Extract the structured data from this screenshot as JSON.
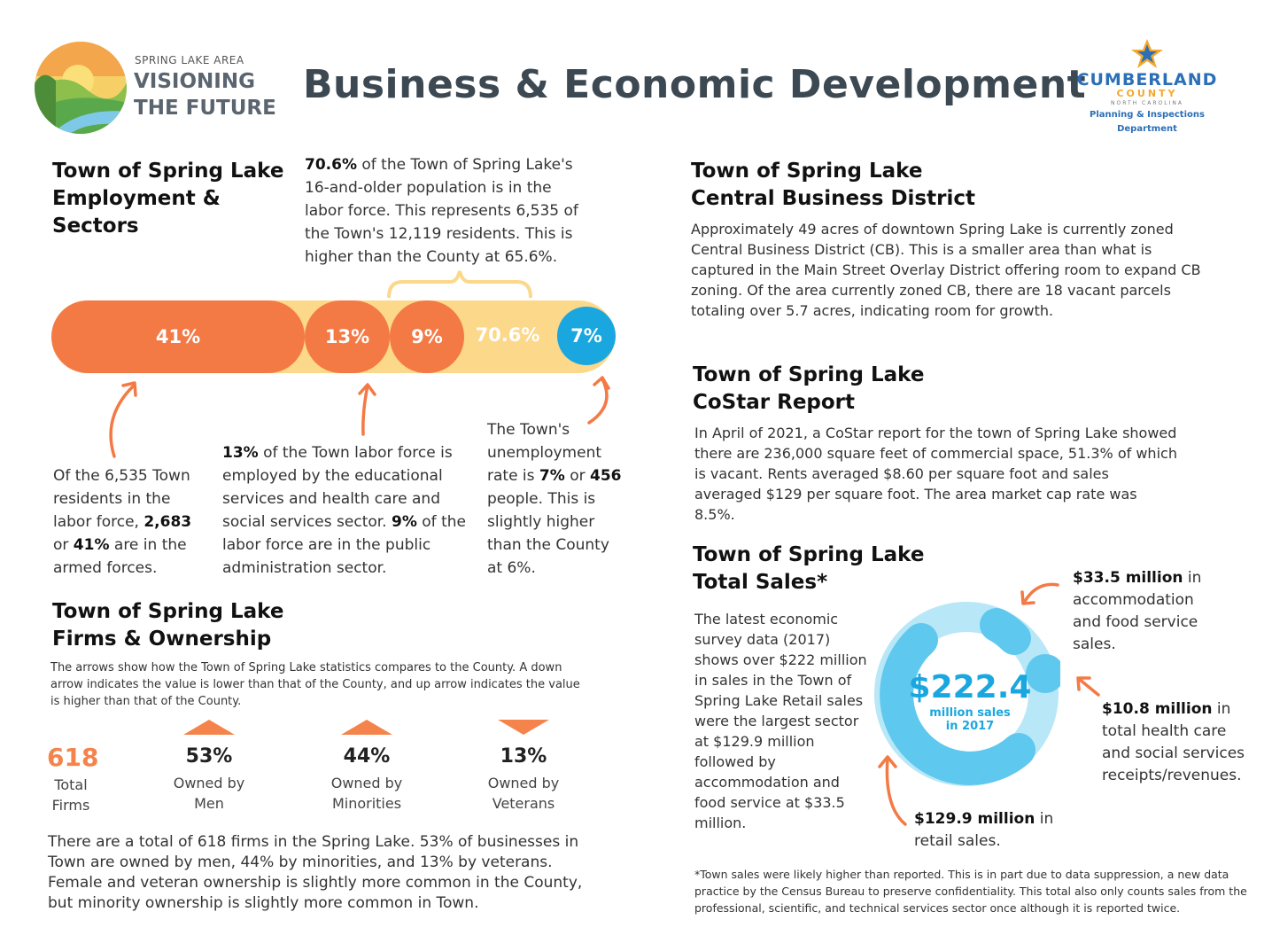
{
  "colors": {
    "orange": "#f47a45",
    "yellow": "#fcd88a",
    "blue": "#1aa7e0",
    "light_blue": "#b8e7f7",
    "mid_blue": "#5fc8ee",
    "title": "#3c4852"
  },
  "logo": {
    "small": "SPRING LAKE AREA",
    "line1": "VISIONING",
    "line2": "THE FUTURE"
  },
  "title": "Business & Economic Development",
  "county_logo": {
    "name": "CUMBERLAND",
    "sub": "COUNTY",
    "state": "NORTH CAROLINA",
    "dept": "Planning & Inspections Department"
  },
  "employment": {
    "heading1": "Town of Spring Lake",
    "heading2": "Employment &",
    "heading3": "Sectors",
    "labor_bold": "70.6%",
    "labor_text": " of the Town of Spring Lake's 16-and-older population is in the labor force. This represents 6,535 of the Town's 12,119 residents. This is higher than the County at 65.6%.",
    "bar": {
      "armed": "41%",
      "edu": "13%",
      "pub": "9%",
      "labor": "70.6%",
      "unemp": "7%"
    },
    "note1": {
      "a": "Of the 6,535 Town residents in the labor force, ",
      "b1": "2,683",
      "c": " or ",
      "b2": "41%",
      "d": " are in the armed forces."
    },
    "note2": {
      "b1": "13%",
      "a": " of the Town labor force is employed by the educational services and health care and social services sector. ",
      "b2": "9%",
      "c": " of the labor force are in the public administration sector."
    },
    "note3": {
      "a": "The Town's unemployment rate is ",
      "b1": "7%",
      "c": " or ",
      "b2": "456",
      "d": " people. This is slightly higher than the County at 6%."
    }
  },
  "firms": {
    "heading1": "Town of Spring Lake",
    "heading2": "Firms & Ownership",
    "intro": "The arrows show how the Town of Spring Lake statistics compares to the County. A down arrow indicates the value is lower than that of the County, and up arrow indicates the value is higher than that of the County.",
    "total_value": "618",
    "total_label1": "Total",
    "total_label2": "Firms",
    "stats": [
      {
        "value": "53%",
        "label1": "Owned by",
        "label2": "Men",
        "direction": "up"
      },
      {
        "value": "44%",
        "label1": "Owned by",
        "label2": "Minorities",
        "direction": "up"
      },
      {
        "value": "13%",
        "label1": "Owned by",
        "label2": "Veterans",
        "direction": "down"
      }
    ],
    "summary": "There are a total of 618 firms in the Spring Lake. 53% of businesses in Town are owned by men, 44% by minorities, and 13% by veterans. Female and veteran ownership is slightly more common in the County, but minority ownership is slightly more common in Town."
  },
  "cbd": {
    "heading1": "Town of Spring Lake",
    "heading2": "Central Business District",
    "text": "Approximately 49 acres of downtown Spring Lake is currently zoned Central Business District (CB). This is a smaller area than what is captured in the Main Street Overlay District offering room to expand CB zoning. Of the area currently zoned CB, there are 18 vacant parcels totaling over 5.7 acres, indicating room for growth."
  },
  "costar": {
    "heading1": "Town of Spring Lake",
    "heading2": "CoStar Report",
    "text": "In April of 2021, a CoStar report for the town of Spring Lake showed there are 236,000 square feet of commercial space, 51.3% of which is vacant. Rents averaged $8.60 per square foot and sales averaged $129 per square foot. The area market cap rate was 8.5%."
  },
  "sales": {
    "heading1": "Town of Spring Lake",
    "heading2": "Total Sales*",
    "text": "The latest economic survey data (2017) shows over $222 million in sales in the Town of Spring Lake Retail sales were the largest sector at $129.9 million followed by accommodation and food service at $33.5 million.",
    "center_value": "$222.4",
    "center_label1": "million sales",
    "center_label2": "in 2017",
    "callout_food_bold": "$33.5 million",
    "callout_food_text": " in accommodation and food service sales.",
    "callout_health_bold": "$10.8 million",
    "callout_health_text": " in total health care and social services receipts/revenues.",
    "callout_retail_bold": "$129.9 million",
    "callout_retail_text": " in retail sales.",
    "footnote": "*Town sales were likely higher than reported. This is in part due to data suppression, a new data practice by the Census Bureau to preserve confidentiality.  This total also only counts sales from the professional, scientific, and technical services sector once although it is reported twice.",
    "segments": [
      {
        "name": "retail",
        "value": 129.9
      },
      {
        "name": "accommodation and food service",
        "value": 33.5
      },
      {
        "name": "health care and social services",
        "value": 10.8
      }
    ]
  }
}
